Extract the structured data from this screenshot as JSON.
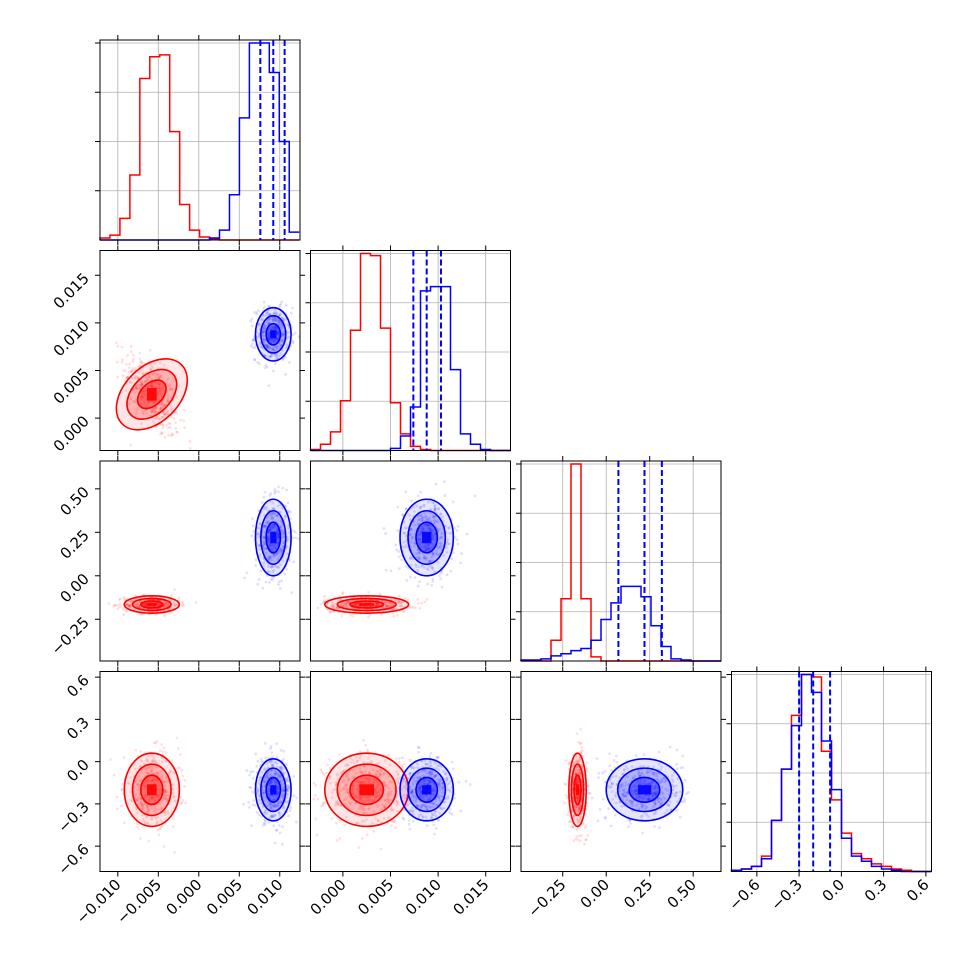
{
  "chart_data": {
    "type": "corner",
    "colors": {
      "series_a": "#ff0000",
      "series_b": "#0000ff",
      "grid": "#b0b0b0"
    },
    "grid": true,
    "quantile_lines": "dashed, series_b only (16%, 50%, 84%)",
    "series": [
      {
        "color": "#ff0000",
        "mean": [
          -0.0058,
          0.0025,
          -0.165,
          -0.2
        ],
        "sd": [
          0.0017,
          0.0022,
          0.025,
          0.13
        ]
      },
      {
        "color": "#0000ff",
        "mean": [
          0.0092,
          0.0088,
          0.22,
          -0.2
        ],
        "sd": [
          0.0011,
          0.0014,
          0.11,
          0.11
        ]
      }
    ],
    "parameters": [
      {
        "xlim": [
          -0.0122,
          0.0125
        ],
        "xticks": [
          -0.01,
          -0.005,
          0.0,
          0.005,
          0.01
        ],
        "xtick_labels": [
          "−0.010",
          "−0.005",
          "0.000",
          "0.005",
          "0.010"
        ],
        "quantiles_b": [
          0.0076,
          0.0092,
          0.0106
        ],
        "hist_a": {
          "start": -0.0122,
          "step": 0.00123,
          "counts": [
            0.01,
            0.025,
            0.11,
            0.33,
            0.82,
            0.93,
            0.94,
            0.55,
            0.18,
            0.05,
            0.015,
            0.005,
            0,
            0,
            0,
            0,
            0,
            0,
            0,
            0
          ]
        },
        "hist_b": {
          "start": -0.0122,
          "step": 0.00123,
          "counts": [
            0,
            0,
            0,
            0,
            0,
            0,
            0,
            0,
            0,
            0,
            0,
            0.01,
            0.05,
            0.23,
            0.62,
            1.0,
            1.0,
            0.85,
            0.5,
            0.04
          ]
        }
      },
      {
        "xlim": [
          -0.0034,
          0.0176
        ],
        "xticks": [
          0.0,
          0.005,
          0.01,
          0.015
        ],
        "xtick_labels": [
          "0.000",
          "0.005",
          "0.010",
          "0.015"
        ],
        "ylabels": [
          "0.000",
          "0.005",
          "0.010",
          "0.015"
        ],
        "quantiles_b": [
          0.0074,
          0.0088,
          0.0103
        ],
        "hist_a": {
          "start": -0.0034,
          "step": 0.00105,
          "counts": [
            0.005,
            0.03,
            0.09,
            0.24,
            0.58,
            0.95,
            0.94,
            0.59,
            0.23,
            0.08,
            0.02,
            0.005,
            0,
            0,
            0,
            0,
            0,
            0,
            0,
            0
          ]
        },
        "hist_b": {
          "start": -0.0034,
          "step": 0.00105,
          "counts": [
            0,
            0,
            0,
            0,
            0,
            0,
            0,
            0,
            0.01,
            0.07,
            0.21,
            0.77,
            0.79,
            0.79,
            0.39,
            0.08,
            0.03,
            0.005,
            0,
            0
          ]
        }
      },
      {
        "xlim": [
          -0.49,
          0.66
        ],
        "xticks": [
          -0.25,
          0.0,
          0.25,
          0.5
        ],
        "xtick_labels": [
          "−0.25",
          "0.00",
          "0.25",
          "0.50"
        ],
        "ylabels": [
          "−0.25",
          "0.00",
          "0.25",
          "0.50"
        ],
        "quantiles_b": [
          0.07,
          0.22,
          0.32
        ],
        "hist_a": {
          "start": -0.49,
          "step": 0.0575,
          "counts": [
            0,
            0,
            0,
            0.1,
            0.3,
            0.95,
            0.3,
            0.02,
            0,
            0,
            0,
            0,
            0,
            0,
            0,
            0,
            0,
            0,
            0,
            0
          ]
        },
        "hist_b": {
          "start": -0.49,
          "step": 0.0575,
          "counts": [
            0.005,
            0.005,
            0.01,
            0.025,
            0.035,
            0.05,
            0.06,
            0.1,
            0.2,
            0.28,
            0.36,
            0.36,
            0.31,
            0.17,
            0.07,
            0.01,
            0.005,
            0,
            0,
            0
          ]
        }
      },
      {
        "xlim": [
          -0.78,
          0.64
        ],
        "xticks": [
          -0.6,
          -0.3,
          0.0,
          0.3,
          0.6
        ],
        "xtick_labels": [
          "−0.6",
          "−0.3",
          "0.0",
          "0.3",
          "0.6"
        ],
        "ylabels": [
          "−0.6",
          "−0.3",
          "0.0",
          "0.3",
          "0.6"
        ],
        "quantiles_b": [
          -0.3,
          -0.2,
          -0.08
        ],
        "hist_a": {
          "start": -0.78,
          "step": 0.071,
          "counts": [
            0.005,
            0.01,
            0.02,
            0.06,
            0.2,
            0.4,
            0.61,
            0.77,
            0.76,
            0.47,
            0.28,
            0.15,
            0.07,
            0.05,
            0.03,
            0.02,
            0.01,
            0.005,
            0,
            0
          ]
        },
        "hist_b": {
          "start": -0.78,
          "step": 0.071,
          "counts": [
            0.005,
            0.01,
            0.02,
            0.05,
            0.2,
            0.4,
            0.57,
            0.77,
            0.7,
            0.51,
            0.32,
            0.13,
            0.06,
            0.04,
            0.02,
            0.01,
            0.005,
            0,
            0,
            0
          ]
        }
      }
    ]
  }
}
